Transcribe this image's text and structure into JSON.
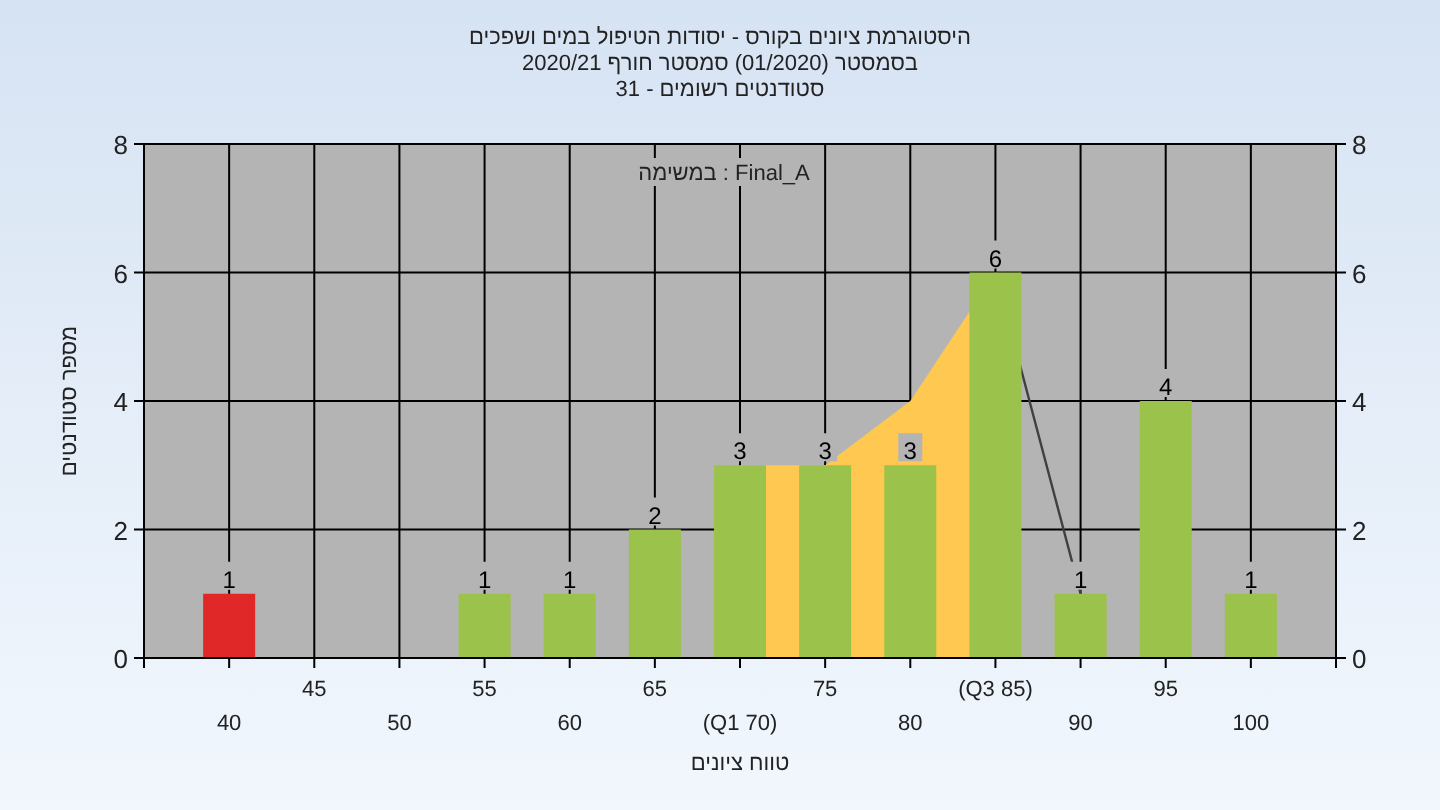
{
  "chart_data": {
    "type": "bar",
    "title": "היסטוגרמת ציונים בקורס - יסודות הטיפול במים ושפכים",
    "subtitle": "בסמסטר  (01/2020)  סמסטר חורף  2020/21\nסטודנטים רשומים - 31",
    "xlabel": "טווח ציונים",
    "ylabel": "מספר סטודנטים",
    "annotations": [
      "במשימה : Final_A"
    ],
    "categories": [
      "40",
      "45",
      "50",
      "55",
      "60",
      "65",
      "(Q1 70)",
      "75",
      "80",
      "(Q3 85)",
      "90",
      "95",
      "100"
    ],
    "series": [
      {
        "type": "area",
        "color": "#ffc850",
        "values": [
          null,
          null,
          null,
          null,
          null,
          null,
          3,
          3,
          4,
          6,
          null,
          null,
          null
        ]
      },
      {
        "type": "line",
        "color": "#404040",
        "values": [
          null,
          null,
          null,
          null,
          null,
          null,
          null,
          null,
          null,
          6,
          1,
          null,
          null
        ]
      },
      {
        "values": [
          1,
          0,
          0,
          1,
          1,
          2,
          3,
          3,
          3,
          6,
          1,
          4,
          1
        ],
        "colors": [
          "#e02828",
          "#9bc24a",
          "#9bc24a",
          "#9bc24a",
          "#9bc24a",
          "#9bc24a",
          "#9bc24a",
          "#9bc24a",
          "#9bc24a",
          "#9bc24a",
          "#9bc24a",
          "#9bc24a",
          "#9bc24a"
        ],
        "value_labels": [
          "1",
          null,
          null,
          "1",
          "1",
          "2",
          "3",
          "3",
          "3",
          "6",
          "1",
          "4",
          "1"
        ]
      }
    ],
    "ylim": [
      0,
      8
    ],
    "yticks": [
      0,
      2,
      4,
      6,
      8
    ],
    "y2lim": [
      0,
      8
    ],
    "y2ticks": [
      0,
      2,
      4,
      6,
      8
    ],
    "grid": true
  }
}
